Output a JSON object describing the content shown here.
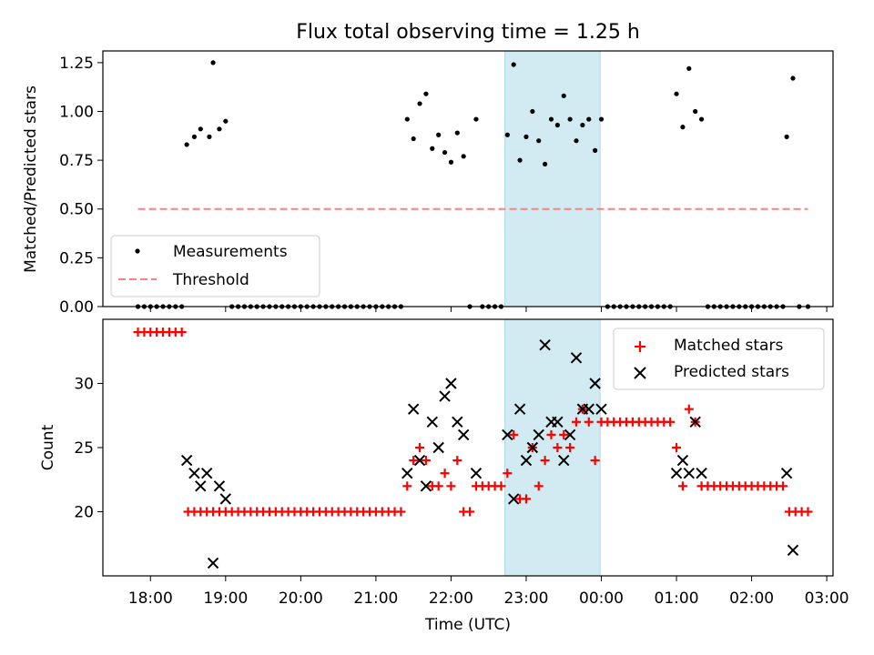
{
  "chart_data": [
    {
      "type": "scatter",
      "title": "Flux total observing time = 1.25 h",
      "xlabel": "",
      "ylabel": "Matched/Predicted stars",
      "ylim": [
        0,
        1.31
      ],
      "xlim": [
        "17:22",
        "03:05"
      ],
      "yticks": [
        "0.00",
        "0.25",
        "0.50",
        "0.75",
        "1.00",
        "1.25"
      ],
      "ytick_values": [
        0,
        0.25,
        0.5,
        0.75,
        1.0,
        1.25
      ],
      "legend_position": "lower-left",
      "shaded_span": {
        "start": "22:43",
        "end": "23:59",
        "color": "#add8e6"
      },
      "series": [
        {
          "name": "Measurements",
          "marker": "dot",
          "color": "#000000",
          "points": [
            [
              "17:50",
              0
            ],
            [
              "17:55",
              0
            ],
            [
              "18:00",
              0
            ],
            [
              "18:05",
              0
            ],
            [
              "18:10",
              0
            ],
            [
              "18:15",
              0
            ],
            [
              "18:20",
              0
            ],
            [
              "18:25",
              0
            ],
            [
              "18:29",
              0.83
            ],
            [
              "18:35",
              0.87
            ],
            [
              "18:40",
              0.91
            ],
            [
              "18:47",
              0.87
            ],
            [
              "18:50",
              1.25
            ],
            [
              "18:55",
              0.91
            ],
            [
              "19:00",
              0.95
            ],
            [
              "19:05",
              0
            ],
            [
              "19:10",
              0
            ],
            [
              "19:15",
              0
            ],
            [
              "19:20",
              0
            ],
            [
              "19:25",
              0
            ],
            [
              "19:30",
              0
            ],
            [
              "19:35",
              0
            ],
            [
              "19:40",
              0
            ],
            [
              "19:45",
              0
            ],
            [
              "19:50",
              0
            ],
            [
              "19:55",
              0
            ],
            [
              "20:00",
              0
            ],
            [
              "20:05",
              0
            ],
            [
              "20:10",
              0
            ],
            [
              "20:15",
              0
            ],
            [
              "20:20",
              0
            ],
            [
              "20:25",
              0
            ],
            [
              "20:30",
              0
            ],
            [
              "20:35",
              0
            ],
            [
              "20:40",
              0
            ],
            [
              "20:45",
              0
            ],
            [
              "20:50",
              0
            ],
            [
              "20:55",
              0
            ],
            [
              "21:00",
              0
            ],
            [
              "21:05",
              0
            ],
            [
              "21:10",
              0
            ],
            [
              "21:15",
              0
            ],
            [
              "21:20",
              0
            ],
            [
              "21:25",
              0.96
            ],
            [
              "21:30",
              0.86
            ],
            [
              "21:35",
              1.04
            ],
            [
              "21:40",
              1.09
            ],
            [
              "21:45",
              0.81
            ],
            [
              "21:50",
              0.88
            ],
            [
              "21:55",
              0.79
            ],
            [
              "22:00",
              0.74
            ],
            [
              "22:05",
              0.89
            ],
            [
              "22:10",
              0.77
            ],
            [
              "22:15",
              0
            ],
            [
              "22:20",
              0.96
            ],
            [
              "22:25",
              0
            ],
            [
              "22:30",
              0
            ],
            [
              "22:35",
              0
            ],
            [
              "22:40",
              0
            ],
            [
              "22:45",
              0.88
            ],
            [
              "22:50",
              1.24
            ],
            [
              "22:55",
              0.75
            ],
            [
              "23:00",
              0.87
            ],
            [
              "23:05",
              1.0
            ],
            [
              "23:10",
              0.85
            ],
            [
              "23:15",
              0.73
            ],
            [
              "23:20",
              0.96
            ],
            [
              "23:25",
              0.93
            ],
            [
              "23:30",
              1.08
            ],
            [
              "23:35",
              0.96
            ],
            [
              "23:40",
              0.85
            ],
            [
              "23:45",
              0.93
            ],
            [
              "23:50",
              0.96
            ],
            [
              "23:55",
              0.8
            ],
            [
              "00:00",
              0.96
            ],
            [
              "00:05",
              0
            ],
            [
              "00:10",
              0
            ],
            [
              "00:15",
              0
            ],
            [
              "00:20",
              0
            ],
            [
              "00:25",
              0
            ],
            [
              "00:30",
              0
            ],
            [
              "00:35",
              0
            ],
            [
              "00:40",
              0
            ],
            [
              "00:45",
              0
            ],
            [
              "00:50",
              0
            ],
            [
              "00:55",
              0
            ],
            [
              "01:00",
              1.09
            ],
            [
              "01:05",
              0.92
            ],
            [
              "01:10",
              1.22
            ],
            [
              "01:15",
              1.0
            ],
            [
              "01:20",
              0.96
            ],
            [
              "01:25",
              0
            ],
            [
              "01:30",
              0
            ],
            [
              "01:35",
              0
            ],
            [
              "01:40",
              0
            ],
            [
              "01:45",
              0
            ],
            [
              "01:50",
              0
            ],
            [
              "01:55",
              0
            ],
            [
              "02:00",
              0
            ],
            [
              "02:05",
              0
            ],
            [
              "02:10",
              0
            ],
            [
              "02:15",
              0
            ],
            [
              "02:20",
              0
            ],
            [
              "02:25",
              0
            ],
            [
              "02:28",
              0.87
            ],
            [
              "02:33",
              1.17
            ],
            [
              "02:38",
              0
            ],
            [
              "02:45",
              0
            ]
          ]
        },
        {
          "name": "Threshold",
          "style": "dashed",
          "color": "#ff8080",
          "points": [
            [
              "17:50",
              0.5
            ],
            [
              "02:45",
              0.5
            ]
          ]
        }
      ]
    },
    {
      "type": "scatter",
      "title": "",
      "xlabel": "Time (UTC)",
      "ylabel": "Count",
      "ylim": [
        15,
        35
      ],
      "xlim": [
        "17:22",
        "03:05"
      ],
      "yticks": [
        "20",
        "25",
        "30"
      ],
      "ytick_values": [
        20,
        25,
        30
      ],
      "xticks": [
        "18:00",
        "19:00",
        "20:00",
        "21:00",
        "22:00",
        "23:00",
        "00:00",
        "01:00",
        "02:00",
        "03:00"
      ],
      "legend_position": "top-right",
      "shaded_span": {
        "start": "22:43",
        "end": "23:59",
        "color": "#add8e6"
      },
      "series": [
        {
          "name": "Matched stars",
          "marker": "plus",
          "color": "#ff0000",
          "points": [
            [
              "17:50",
              34
            ],
            [
              "17:55",
              34
            ],
            [
              "18:00",
              34
            ],
            [
              "18:05",
              34
            ],
            [
              "18:10",
              34
            ],
            [
              "18:15",
              34
            ],
            [
              "18:20",
              34
            ],
            [
              "18:25",
              34
            ],
            [
              "18:30",
              20
            ],
            [
              "18:35",
              20
            ],
            [
              "18:40",
              20
            ],
            [
              "18:45",
              20
            ],
            [
              "18:50",
              20
            ],
            [
              "18:55",
              20
            ],
            [
              "19:00",
              20
            ],
            [
              "19:05",
              20
            ],
            [
              "19:10",
              20
            ],
            [
              "19:15",
              20
            ],
            [
              "19:20",
              20
            ],
            [
              "19:25",
              20
            ],
            [
              "19:30",
              20
            ],
            [
              "19:35",
              20
            ],
            [
              "19:40",
              20
            ],
            [
              "19:45",
              20
            ],
            [
              "19:50",
              20
            ],
            [
              "19:55",
              20
            ],
            [
              "20:00",
              20
            ],
            [
              "20:05",
              20
            ],
            [
              "20:10",
              20
            ],
            [
              "20:15",
              20
            ],
            [
              "20:20",
              20
            ],
            [
              "20:25",
              20
            ],
            [
              "20:30",
              20
            ],
            [
              "20:35",
              20
            ],
            [
              "20:40",
              20
            ],
            [
              "20:45",
              20
            ],
            [
              "20:50",
              20
            ],
            [
              "20:55",
              20
            ],
            [
              "21:00",
              20
            ],
            [
              "21:05",
              20
            ],
            [
              "21:10",
              20
            ],
            [
              "21:15",
              20
            ],
            [
              "21:20",
              20
            ],
            [
              "21:25",
              22
            ],
            [
              "21:30",
              24
            ],
            [
              "21:35",
              25
            ],
            [
              "21:40",
              24
            ],
            [
              "21:45",
              22
            ],
            [
              "21:50",
              22
            ],
            [
              "21:55",
              23
            ],
            [
              "22:00",
              22
            ],
            [
              "22:05",
              24
            ],
            [
              "22:10",
              20
            ],
            [
              "22:15",
              20
            ],
            [
              "22:20",
              22
            ],
            [
              "22:25",
              22
            ],
            [
              "22:30",
              22
            ],
            [
              "22:35",
              22
            ],
            [
              "22:40",
              22
            ],
            [
              "22:45",
              23
            ],
            [
              "22:50",
              26
            ],
            [
              "22:55",
              21
            ],
            [
              "23:00",
              21
            ],
            [
              "23:05",
              25
            ],
            [
              "23:10",
              22
            ],
            [
              "23:15",
              24
            ],
            [
              "23:20",
              26
            ],
            [
              "23:25",
              25
            ],
            [
              "23:30",
              26
            ],
            [
              "23:35",
              25
            ],
            [
              "23:40",
              27
            ],
            [
              "23:45",
              28
            ],
            [
              "23:50",
              27
            ],
            [
              "23:55",
              24
            ],
            [
              "00:00",
              27
            ],
            [
              "00:05",
              27
            ],
            [
              "00:10",
              27
            ],
            [
              "00:15",
              27
            ],
            [
              "00:20",
              27
            ],
            [
              "00:25",
              27
            ],
            [
              "00:30",
              27
            ],
            [
              "00:35",
              27
            ],
            [
              "00:40",
              27
            ],
            [
              "00:45",
              27
            ],
            [
              "00:50",
              27
            ],
            [
              "00:55",
              27
            ],
            [
              "01:00",
              25
            ],
            [
              "01:05",
              22
            ],
            [
              "01:10",
              28
            ],
            [
              "01:15",
              27
            ],
            [
              "01:20",
              22
            ],
            [
              "01:25",
              22
            ],
            [
              "01:30",
              22
            ],
            [
              "01:35",
              22
            ],
            [
              "01:40",
              22
            ],
            [
              "01:45",
              22
            ],
            [
              "01:50",
              22
            ],
            [
              "01:55",
              22
            ],
            [
              "02:00",
              22
            ],
            [
              "02:05",
              22
            ],
            [
              "02:10",
              22
            ],
            [
              "02:15",
              22
            ],
            [
              "02:20",
              22
            ],
            [
              "02:25",
              22
            ],
            [
              "02:30",
              20
            ],
            [
              "02:35",
              20
            ],
            [
              "02:40",
              20
            ],
            [
              "02:45",
              20
            ]
          ]
        },
        {
          "name": "Predicted stars",
          "marker": "x",
          "color": "#000000",
          "points": [
            [
              "18:29",
              24
            ],
            [
              "18:35",
              23
            ],
            [
              "18:40",
              22
            ],
            [
              "18:45",
              23
            ],
            [
              "18:50",
              16
            ],
            [
              "18:55",
              22
            ],
            [
              "19:00",
              21
            ],
            [
              "21:25",
              23
            ],
            [
              "21:30",
              28
            ],
            [
              "21:35",
              24
            ],
            [
              "21:40",
              22
            ],
            [
              "21:45",
              27
            ],
            [
              "21:50",
              25
            ],
            [
              "21:55",
              29
            ],
            [
              "22:00",
              30
            ],
            [
              "22:05",
              27
            ],
            [
              "22:10",
              26
            ],
            [
              "22:20",
              23
            ],
            [
              "22:45",
              26
            ],
            [
              "22:50",
              21
            ],
            [
              "22:55",
              28
            ],
            [
              "23:00",
              24
            ],
            [
              "23:05",
              25
            ],
            [
              "23:10",
              26
            ],
            [
              "23:15",
              33
            ],
            [
              "23:20",
              27
            ],
            [
              "23:25",
              27
            ],
            [
              "23:30",
              24
            ],
            [
              "23:35",
              26
            ],
            [
              "23:40",
              32
            ],
            [
              "23:45",
              28
            ],
            [
              "23:50",
              28
            ],
            [
              "23:55",
              30
            ],
            [
              "00:00",
              28
            ],
            [
              "01:00",
              23
            ],
            [
              "01:05",
              24
            ],
            [
              "01:10",
              23
            ],
            [
              "01:15",
              27
            ],
            [
              "01:20",
              23
            ],
            [
              "02:28",
              23
            ],
            [
              "02:33",
              17
            ]
          ]
        }
      ]
    }
  ]
}
